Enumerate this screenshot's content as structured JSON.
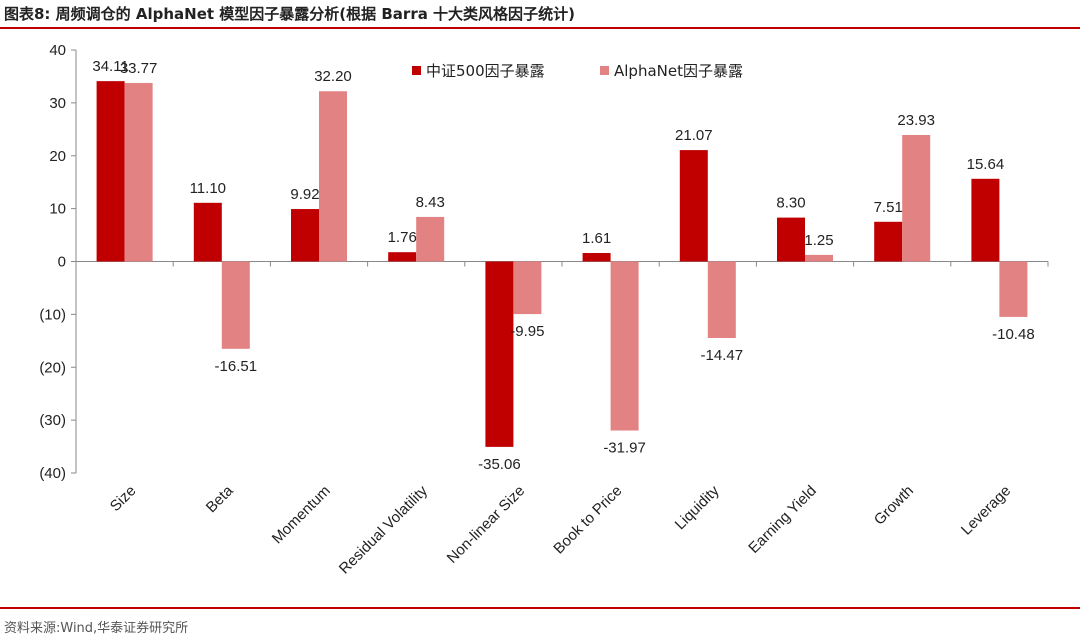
{
  "header": {
    "title": "图表8:  周频调仓的 AlphaNet 模型因子暴露分析(根据 Barra 十大类风格因子统计)"
  },
  "footer": {
    "source": "资料来源:Wind,华泰证券研究所"
  },
  "colors": {
    "series1": "#c00000",
    "series2": "#e38282",
    "accent": "#c00000"
  },
  "chart_data": {
    "type": "bar",
    "title": "周频调仓的 AlphaNet 模型因子暴露分析(根据 Barra 十大类风格因子统计)",
    "categories": [
      "Size",
      "Beta",
      "Momentum",
      "Residual Volatility",
      "Non-linear Size",
      "Book to Price",
      "Liquidity",
      "Earning Yield",
      "Growth",
      "Leverage"
    ],
    "series": [
      {
        "name": "中证500因子暴露",
        "values": [
          34.11,
          11.1,
          9.92,
          1.76,
          -35.06,
          1.61,
          21.07,
          8.3,
          7.51,
          15.64
        ],
        "labels": [
          "34.11",
          "11.10",
          "9.92",
          "1.76",
          "-35.06",
          "1.61",
          "21.07",
          "8.30",
          "7.51",
          "15.64"
        ]
      },
      {
        "name": "AlphaNet因子暴露",
        "values": [
          33.77,
          -16.51,
          32.2,
          8.43,
          -9.95,
          -31.97,
          -14.47,
          1.25,
          23.93,
          -10.48
        ],
        "labels": [
          "33.77",
          "-16.51",
          "32.20",
          "8.43",
          "-9.95",
          "-31.97",
          "-14.47",
          "1.25",
          "23.93",
          "-10.48"
        ]
      }
    ],
    "ylim": [
      -40,
      40
    ],
    "yticks": [
      40,
      30,
      20,
      10,
      0,
      -10,
      -20,
      -30,
      -40
    ],
    "ytick_labels": [
      "40",
      "30",
      "20",
      "10",
      "0",
      "(10)",
      "(20)",
      "(30)",
      "(40)"
    ],
    "legend_position": "top-center",
    "grid": false,
    "xlabel": "",
    "ylabel": ""
  }
}
